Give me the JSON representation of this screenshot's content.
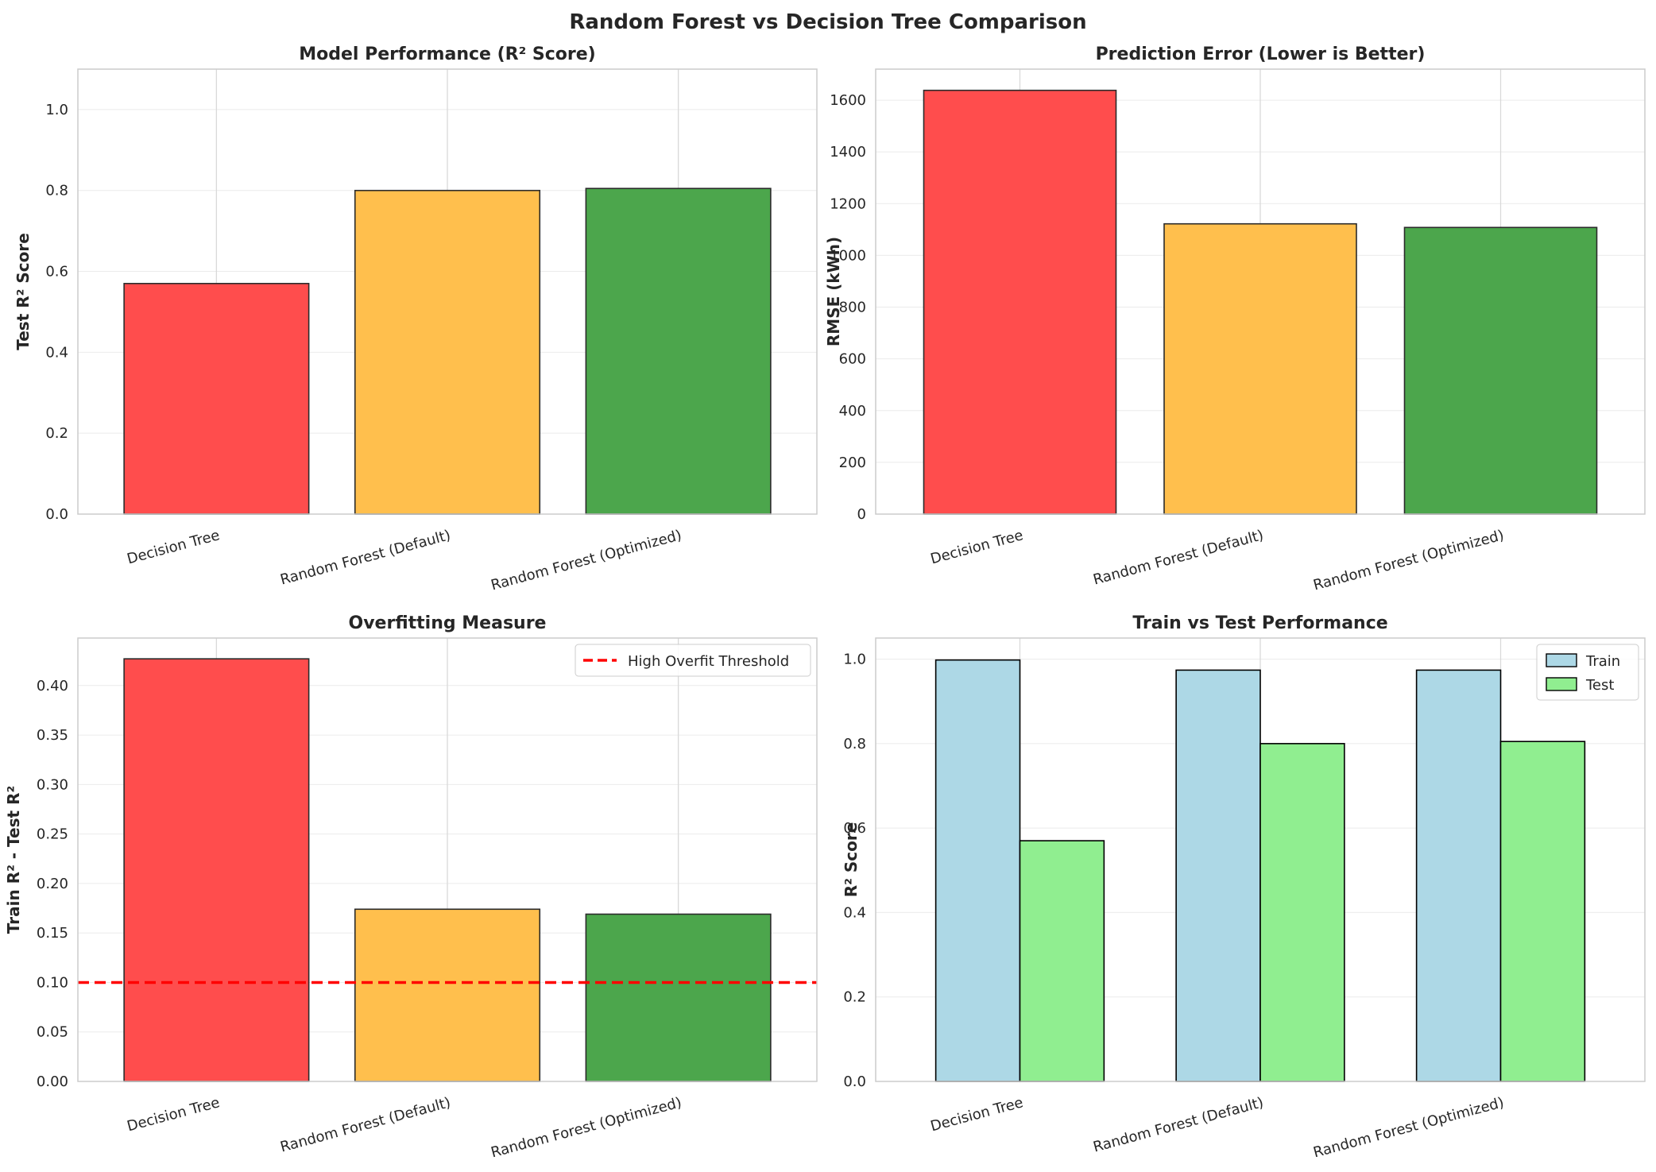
{
  "suptitle": "Random Forest vs Decision Tree Comparison",
  "colors": {
    "red": "#ff4d4d",
    "orange": "#ffbf4d",
    "green": "#4ca64c",
    "lightblue": "#add8e6",
    "lightgreen": "#90ee90",
    "threshold": "#ff0000",
    "grid": "#ebebeb",
    "frame": "#cccccc"
  },
  "chart_data": [
    {
      "type": "bar",
      "title": "Model Performance (R² Score)",
      "ylabel": "Test R² Score",
      "xlabel": "",
      "categories": [
        "Decision Tree",
        "Random Forest (Default)",
        "Random Forest (Optimized)"
      ],
      "values": [
        0.57,
        0.8,
        0.805
      ],
      "bar_colors": [
        "red",
        "orange",
        "green"
      ],
      "ylim": [
        0,
        1.1
      ],
      "yticks": [
        0.0,
        0.2,
        0.4,
        0.6,
        0.8,
        1.0
      ],
      "ytick_labels": [
        "0.0",
        "0.2",
        "0.4",
        "0.6",
        "0.8",
        "1.0"
      ]
    },
    {
      "type": "bar",
      "title": "Prediction Error (Lower is Better)",
      "ylabel": "RMSE (kWh)",
      "xlabel": "",
      "categories": [
        "Decision Tree",
        "Random Forest (Default)",
        "Random Forest (Optimized)"
      ],
      "values": [
        1638,
        1122,
        1108
      ],
      "bar_colors": [
        "red",
        "orange",
        "green"
      ],
      "ylim": [
        0,
        1720
      ],
      "yticks": [
        0,
        200,
        400,
        600,
        800,
        1000,
        1200,
        1400,
        1600
      ],
      "ytick_labels": [
        "0",
        "200",
        "400",
        "600",
        "800",
        "1000",
        "1200",
        "1400",
        "1600"
      ]
    },
    {
      "type": "bar",
      "title": "Overfitting Measure",
      "ylabel": "Train R² - Test R²",
      "xlabel": "",
      "categories": [
        "Decision Tree",
        "Random Forest (Default)",
        "Random Forest (Optimized)"
      ],
      "values": [
        0.427,
        0.174,
        0.169
      ],
      "bar_colors": [
        "red",
        "orange",
        "green"
      ],
      "ylim": [
        0,
        0.448
      ],
      "yticks": [
        0.0,
        0.05,
        0.1,
        0.15,
        0.2,
        0.25,
        0.3,
        0.35,
        0.4
      ],
      "ytick_labels": [
        "0.00",
        "0.05",
        "0.10",
        "0.15",
        "0.20",
        "0.25",
        "0.30",
        "0.35",
        "0.40"
      ],
      "hline": {
        "y": 0.1,
        "label": "High Overfit Threshold"
      },
      "legend_position": "top-right"
    },
    {
      "type": "grouped_bar",
      "title": "Train vs Test Performance",
      "ylabel": "R² Score",
      "xlabel": "",
      "categories": [
        "Decision Tree",
        "Random Forest (Default)",
        "Random Forest (Optimized)"
      ],
      "series": [
        {
          "name": "Train",
          "values": [
            0.998,
            0.974,
            0.974
          ],
          "color": "lightblue"
        },
        {
          "name": "Test",
          "values": [
            0.57,
            0.8,
            0.805
          ],
          "color": "lightgreen"
        }
      ],
      "ylim": [
        0,
        1.05
      ],
      "yticks": [
        0.0,
        0.2,
        0.4,
        0.6,
        0.8,
        1.0
      ],
      "ytick_labels": [
        "0.0",
        "0.2",
        "0.4",
        "0.6",
        "0.8",
        "1.0"
      ],
      "legend_position": "top-right"
    }
  ]
}
